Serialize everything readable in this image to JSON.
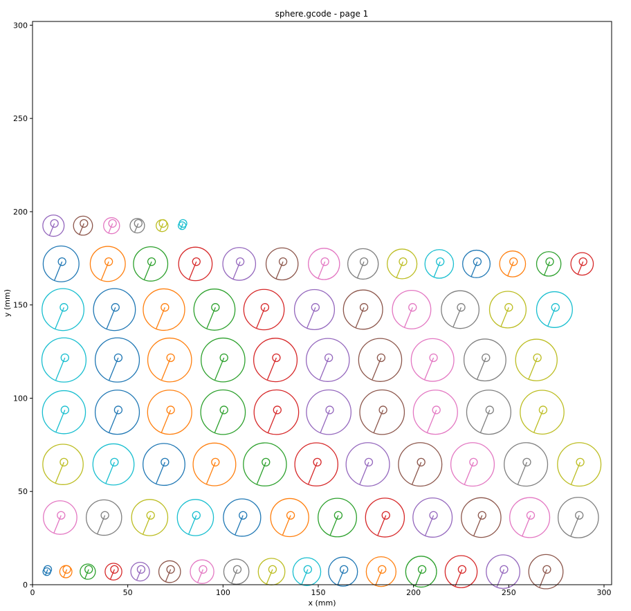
{
  "chart_data": {
    "type": "scatter",
    "title": "sphere.gcode - page 1",
    "xlabel": "x (mm)",
    "ylabel": "y (mm)",
    "xlim": [
      0,
      304
    ],
    "ylim": [
      0,
      302
    ],
    "xticks": [
      0,
      50,
      100,
      150,
      200,
      250,
      300
    ],
    "yticks": [
      0,
      50,
      100,
      150,
      200,
      250,
      300
    ],
    "grid": false,
    "legend": "none",
    "palette": [
      "#1f77b4",
      "#ff7f0e",
      "#2ca02c",
      "#d62728",
      "#9467bd",
      "#8c564b",
      "#e377c2",
      "#7f7f7f",
      "#bcbd22",
      "#17becf"
    ],
    "rows": [
      {
        "y": 7.0,
        "inner_r": 2.0,
        "cx": [
          7.5,
          17.5,
          29.0,
          42.5,
          56.5,
          72.0,
          89.0,
          107.0,
          125.5,
          144.0,
          163.0,
          183.0,
          204.0,
          225.0,
          247.0,
          269.5
        ],
        "outer_r": [
          2.0,
          3.2,
          4.0,
          4.4,
          4.9,
          5.7,
          6.2,
          6.6,
          7.0,
          7.3,
          7.6,
          7.8,
          8.1,
          8.4,
          8.8,
          9.0
        ]
      },
      {
        "y": 36.0,
        "inner_r": 2.0,
        "cx": [
          14.5,
          37.5,
          61.5,
          85.5,
          110.0,
          135.0,
          160.0,
          185.0,
          210.0,
          235.5,
          261.0,
          286.5
        ],
        "outer_r": [
          8.8,
          9.3,
          9.5,
          9.5,
          9.8,
          10.0,
          10.1,
          10.2,
          10.3,
          10.4,
          10.5,
          10.6
        ]
      },
      {
        "y": 64.5,
        "inner_r": 2.0,
        "cx": [
          16.0,
          42.5,
          69.0,
          95.5,
          122.0,
          149.0,
          176.0,
          203.5,
          231.0,
          259.0,
          287.0
        ],
        "outer_r": [
          10.6,
          10.8,
          11.0,
          11.2,
          11.3,
          11.3,
          11.4,
          11.4,
          11.4,
          11.4,
          11.4
        ]
      },
      {
        "y": 92.5,
        "inner_r": 2.0,
        "cx": [
          16.5,
          44.5,
          72.0,
          100.0,
          128.0,
          155.5,
          183.5,
          211.5,
          239.5,
          267.5
        ],
        "outer_r": [
          11.3,
          11.6,
          11.6,
          11.7,
          11.7,
          11.7,
          11.7,
          11.6,
          11.6,
          11.5
        ]
      },
      {
        "y": 120.5,
        "inner_r": 2.0,
        "cx": [
          16.5,
          44.5,
          72.0,
          100.0,
          127.5,
          155.0,
          182.5,
          210.0,
          237.5,
          264.5
        ],
        "outer_r": [
          11.6,
          11.6,
          11.5,
          11.5,
          11.4,
          11.3,
          11.3,
          11.2,
          11.0,
          10.9
        ]
      },
      {
        "y": 147.5,
        "inner_r": 2.0,
        "cx": [
          16.0,
          43.0,
          69.0,
          95.5,
          121.5,
          148.0,
          173.5,
          199.0,
          224.5,
          249.5,
          274.0
        ],
        "outer_r": [
          11.0,
          11.0,
          10.9,
          10.8,
          10.6,
          10.5,
          10.3,
          10.1,
          9.9,
          9.6,
          9.4
        ]
      },
      {
        "y": 172.0,
        "inner_r": 2.0,
        "cx": [
          15.0,
          39.5,
          62.0,
          85.5,
          108.5,
          131.0,
          153.0,
          173.5,
          194.0,
          213.5,
          233.0,
          252.0,
          271.0,
          288.5
        ],
        "outer_r": [
          9.4,
          9.2,
          9.0,
          8.8,
          8.6,
          8.4,
          8.2,
          8.0,
          7.8,
          7.5,
          7.2,
          6.8,
          6.4,
          5.9
        ]
      },
      {
        "y": 192.5,
        "inner_r": 2.0,
        "cx": [
          11.0,
          26.5,
          41.5,
          55.0,
          68.0,
          78.5
        ],
        "outer_r": [
          5.6,
          5.0,
          4.2,
          3.8,
          3.1,
          2.0
        ]
      }
    ]
  }
}
